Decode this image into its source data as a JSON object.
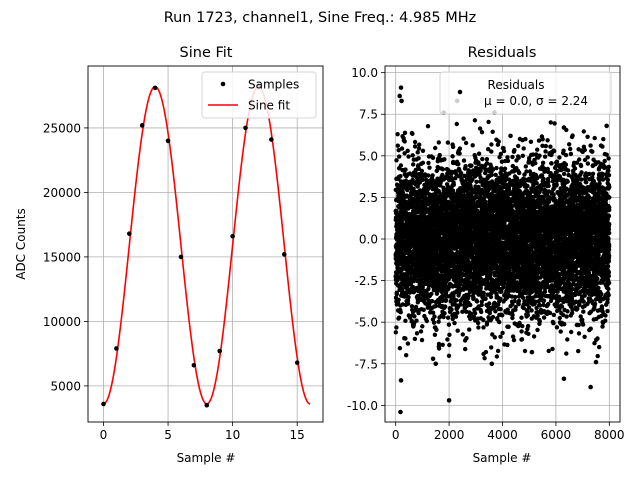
{
  "figure": {
    "suptitle": "Run 1723, channel1, Sine Freq.: 4.985 MHz"
  },
  "chart_data": [
    {
      "type": "line",
      "title": "Sine Fit",
      "xlabel": "Sample #",
      "ylabel": "ADC Counts",
      "xlim": [
        -1.2,
        17.0
      ],
      "ylim": [
        2200,
        29800
      ],
      "xticks": [
        0,
        5,
        10,
        15
      ],
      "yticks": [
        5000,
        10000,
        15000,
        20000,
        25000
      ],
      "grid": true,
      "legend": {
        "placement": "top-right",
        "entries": [
          {
            "label": "Samples",
            "marker": "dot",
            "color": "#000000"
          },
          {
            "label": "Sine fit",
            "marker": "line",
            "color": "#ff0000"
          }
        ]
      },
      "series": [
        {
          "name": "Samples",
          "style": "scatter",
          "color": "#000000",
          "x": [
            0,
            1,
            2,
            3,
            4,
            5,
            6,
            7,
            8,
            9,
            10,
            11,
            12,
            13,
            14,
            15
          ],
          "y": [
            3600,
            7900,
            16800,
            25200,
            28100,
            24000,
            15000,
            6600,
            3500,
            7700,
            16600,
            25000,
            28300,
            24100,
            15200,
            6800
          ]
        },
        {
          "name": "Sine fit",
          "style": "line",
          "color": "#ff0000",
          "function": {
            "offset": 15900,
            "amplitude": 12300,
            "period_samples": 8.0,
            "peak_at_sample": 4.0
          },
          "x_range": [
            0,
            16
          ]
        }
      ]
    },
    {
      "type": "scatter",
      "title": "Residuals",
      "xlabel": "Sample #",
      "ylabel": "",
      "xlim": [
        -400,
        8400
      ],
      "ylim": [
        -11.0,
        10.4
      ],
      "xticks": [
        0,
        2000,
        4000,
        6000,
        8000
      ],
      "yticks": [
        -10.0,
        -7.5,
        -5.0,
        -2.5,
        0.0,
        2.5,
        5.0,
        7.5,
        10.0
      ],
      "grid": true,
      "legend": {
        "placement": "top-right",
        "entries": [
          {
            "label": "Residuals",
            "sublabel": "μ = 0.0, σ = 2.24",
            "marker": "dot",
            "color": "#000000"
          }
        ]
      },
      "series": [
        {
          "name": "Residuals",
          "color": "#000000",
          "count": 8000,
          "mean": 0.0,
          "std": 2.24,
          "outliers": [
            {
              "x": 200,
              "y": 9.1
            },
            {
              "x": 150,
              "y": 8.6
            },
            {
              "x": 220,
              "y": 8.3
            },
            {
              "x": 2300,
              "y": 8.3
            },
            {
              "x": 1800,
              "y": 7.6
            },
            {
              "x": 3700,
              "y": 7.6
            },
            {
              "x": 7900,
              "y": 6.8
            },
            {
              "x": 6300,
              "y": 6.7
            },
            {
              "x": 4300,
              "y": 6.2
            },
            {
              "x": 5500,
              "y": 6.0
            },
            {
              "x": 2000,
              "y": -9.7
            },
            {
              "x": 180,
              "y": -10.4
            },
            {
              "x": 6300,
              "y": -8.4
            },
            {
              "x": 7300,
              "y": -8.9
            },
            {
              "x": 200,
              "y": -8.5
            },
            {
              "x": 1500,
              "y": -7.5
            },
            {
              "x": 3600,
              "y": -7.5
            },
            {
              "x": 5100,
              "y": -6.8
            },
            {
              "x": 7500,
              "y": -7.4
            },
            {
              "x": 1400,
              "y": -7.2
            }
          ]
        }
      ]
    }
  ]
}
